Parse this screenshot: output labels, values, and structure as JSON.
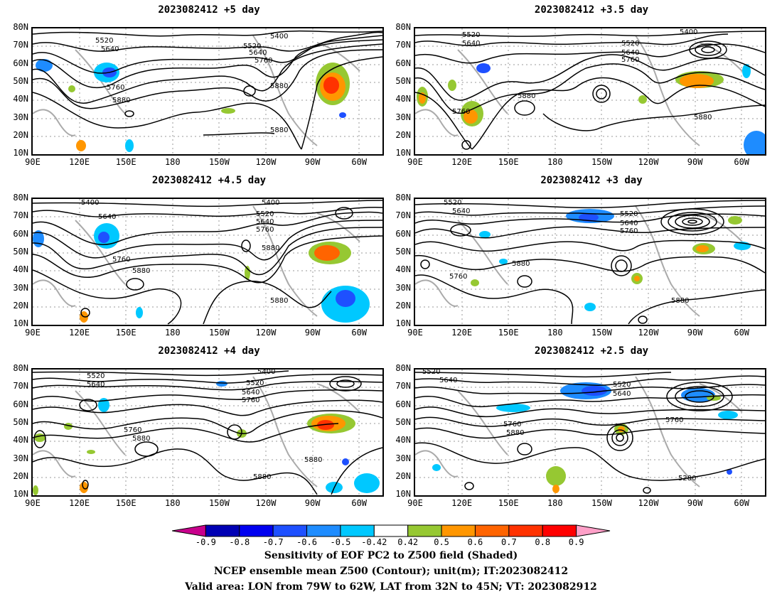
{
  "panels": [
    {
      "title": "2023082412 +5 day",
      "contour_labels": [
        "5400",
        "5520",
        "5520",
        "5640",
        "5640",
        "5760",
        "5760",
        "5880",
        "5880",
        "5880"
      ]
    },
    {
      "title": "2023082412 +3.5 day",
      "contour_labels": [
        "5400",
        "5520",
        "5520",
        "5640",
        "5640",
        "5760",
        "5760",
        "5880",
        "5880"
      ]
    },
    {
      "title": "2023082412 +4.5 day",
      "contour_labels": [
        "5400",
        "5400",
        "5520",
        "5640",
        "5640",
        "5760",
        "5760",
        "5880",
        "5880",
        "5880"
      ]
    },
    {
      "title": "2023082412 +3 day",
      "contour_labels": [
        "5520",
        "5520",
        "5640",
        "5640",
        "5760",
        "5760",
        "5880",
        "5880"
      ]
    },
    {
      "title": "2023082412 +4 day",
      "contour_labels": [
        "5400",
        "5520",
        "5520",
        "5640",
        "5640",
        "5760",
        "5760",
        "5880",
        "5880",
        "5880"
      ]
    },
    {
      "title": "2023082412 +2.5 day",
      "contour_labels": [
        "5520",
        "5520",
        "5640",
        "5640",
        "5760",
        "5760",
        "5880",
        "5280"
      ]
    }
  ],
  "axes": {
    "lat_ticks": [
      "80N",
      "70N",
      "60N",
      "50N",
      "40N",
      "30N",
      "20N",
      "10N"
    ],
    "lon_ticks": [
      "90E",
      "120E",
      "150E",
      "180",
      "150W",
      "120W",
      "90W",
      "60W"
    ]
  },
  "colorbar": {
    "ticks": [
      "-0.9",
      "-0.8",
      "-0.7",
      "-0.6",
      "-0.5",
      "-0.42",
      "0.42",
      "0.5",
      "0.6",
      "0.7",
      "0.8",
      "0.9"
    ],
    "colors": [
      "#c8008c",
      "#0000b4",
      "#0000f0",
      "#1e50ff",
      "#1e8cff",
      "#00c8ff",
      "#ffffff",
      "#96c832",
      "#ff9600",
      "#ff6400",
      "#ff3200",
      "#ff0000",
      "#ffa0c8"
    ]
  },
  "caption": {
    "line1": "Sensitivity of EOF PC2 to Z500 field (Shaded)",
    "line2": "NCEP ensemble mean Z500 (Contour); unit(m); IT:2023082412",
    "line3": "Valid area: LON from 79W to 62W, LAT from 32N to 45N; VT: 2023082912"
  }
}
